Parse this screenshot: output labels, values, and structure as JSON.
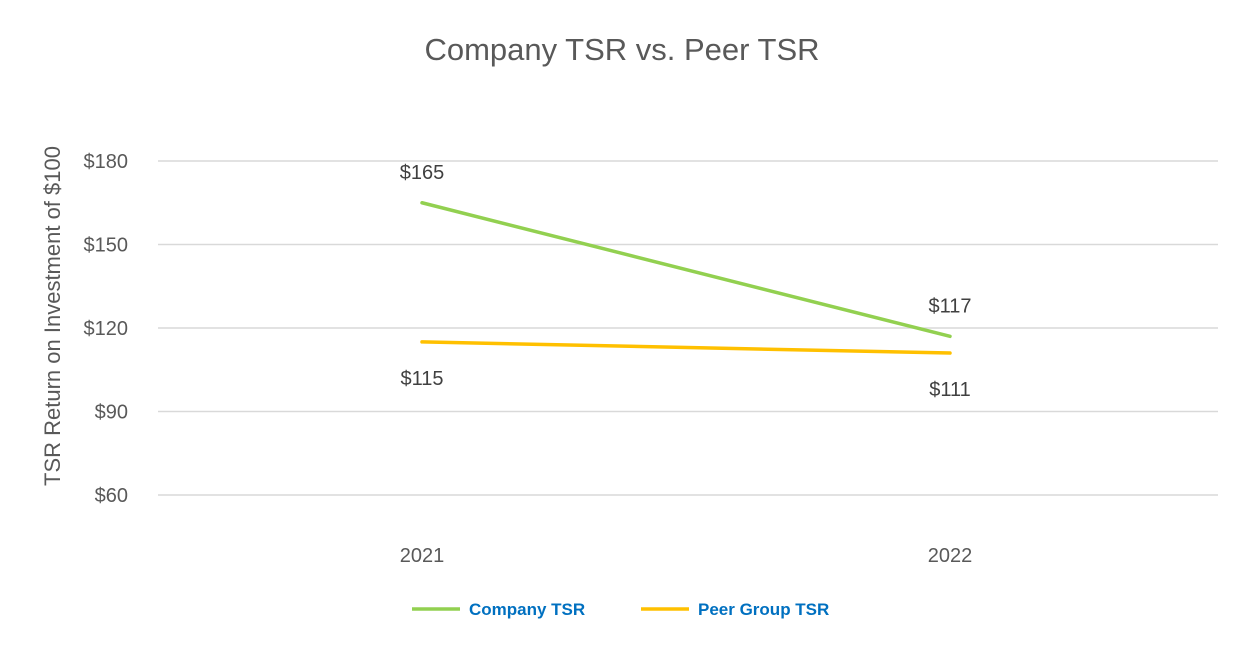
{
  "chart_data": {
    "type": "line",
    "title": "Company TSR vs. Peer TSR",
    "xlabel": "",
    "ylabel": "TSR Return on Investment of $100",
    "categories": [
      "2021",
      "2022"
    ],
    "ylim": [
      60,
      180
    ],
    "yticks": [
      60,
      90,
      120,
      150,
      180
    ],
    "ytick_labels": [
      "$60",
      "$90",
      "$120",
      "$150",
      "$180"
    ],
    "grid": true,
    "legend_position": "bottom",
    "series": [
      {
        "name": "Company TSR",
        "values": [
          165,
          117
        ],
        "data_labels": [
          "$165",
          "$117"
        ],
        "color": "#92D050",
        "label_side": "above"
      },
      {
        "name": "Peer Group TSR",
        "values": [
          115,
          111
        ],
        "data_labels": [
          "$115",
          "$111"
        ],
        "color": "#FFC000",
        "label_side": "below"
      }
    ],
    "colors": {
      "legend_text": "#0070C0",
      "grid": "#D9D9D9",
      "text": "#595959"
    }
  }
}
